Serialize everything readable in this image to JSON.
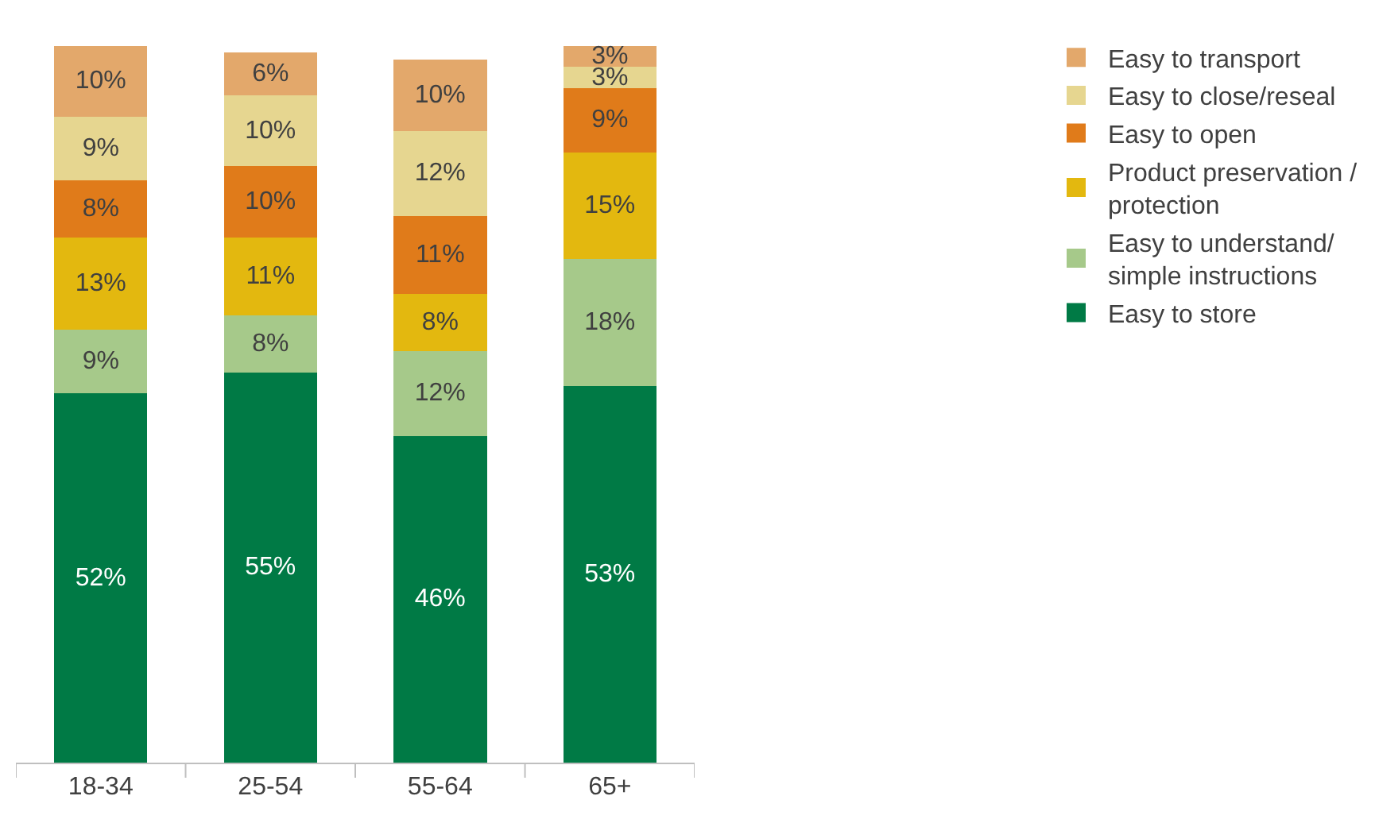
{
  "chart_data": {
    "type": "bar",
    "stacked": true,
    "categories": [
      "18-34",
      "25-54",
      "55-64",
      "65+"
    ],
    "series": [
      {
        "name": "Easy to store",
        "color": "#007a45",
        "values": [
          52,
          55,
          46,
          53
        ],
        "value_labels": [
          "52%",
          "55%",
          "46%",
          "53%"
        ]
      },
      {
        "name": "Easy to understand/ simple instructions",
        "color": "#a6c98a",
        "values": [
          9,
          8,
          12,
          18
        ],
        "value_labels": [
          "9%",
          "8%",
          "12%",
          "18%"
        ]
      },
      {
        "name": "Product preservation / protection",
        "color": "#e3b80f",
        "values": [
          13,
          11,
          8,
          15
        ],
        "value_labels": [
          "13%",
          "11%",
          "8%",
          "15%"
        ]
      },
      {
        "name": "Easy to open",
        "color": "#e07b1a",
        "values": [
          8,
          10,
          11,
          9
        ],
        "value_labels": [
          "8%",
          "10%",
          "11%",
          "9%"
        ]
      },
      {
        "name": "Easy to close/reseal",
        "color": "#e6d690",
        "values": [
          9,
          10,
          12,
          3
        ],
        "value_labels": [
          "9%",
          "10%",
          "12%",
          "3%"
        ]
      },
      {
        "name": "Easy to transport",
        "color": "#e3a86b",
        "values": [
          10,
          6,
          10,
          3
        ],
        "value_labels": [
          "10%",
          "6%",
          "10%",
          "3%"
        ]
      }
    ],
    "legend": "right"
  }
}
